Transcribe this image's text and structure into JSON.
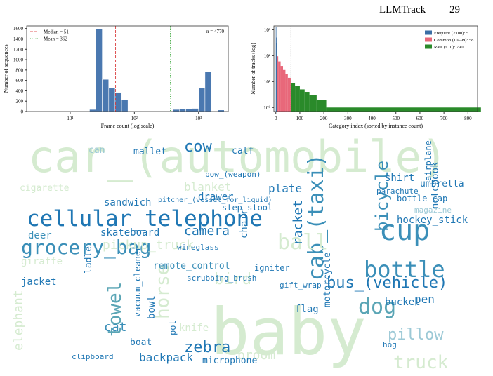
{
  "header": {
    "title": "LLMTrack",
    "page": "29"
  },
  "chart_data": [
    {
      "type": "histogram",
      "x_label": "Frame count (log scale)",
      "y_label": "Number of sequences",
      "xscale": "log",
      "color": "#4a78b0",
      "bins": [
        20,
        25.1,
        31.6,
        39.8,
        50.1,
        63.1,
        79.4,
        100,
        125.9,
        158.5,
        199.5,
        251.2,
        316.2,
        398.1,
        501.2,
        631,
        794.3,
        1000,
        1258.9,
        1584.9,
        1995.3,
        2511.9
      ],
      "values": [
        40,
        1590,
        620,
        450,
        370,
        230,
        0,
        0,
        0,
        0,
        0,
        0,
        0,
        40,
        50,
        50,
        60,
        450,
        770,
        0,
        30
      ],
      "xlim": [
        2.1,
        2900
      ],
      "xticks": [
        {
          "value": 10,
          "label": "10¹"
        },
        {
          "value": 100,
          "label": "10²"
        },
        {
          "value": 1000,
          "label": "10³"
        }
      ],
      "ylim": [
        0,
        1650
      ],
      "yticks": [
        0,
        200,
        400,
        600,
        800,
        1000,
        1200,
        1400,
        1600
      ],
      "annotation": "n = 4770",
      "lines": [
        {
          "name": "Median = 51",
          "value": 51,
          "color": "#d62728",
          "style": "dashed"
        },
        {
          "name": "Mean = 362",
          "value": 362,
          "color": "#2ca02c",
          "style": "dotted"
        }
      ],
      "legend": "upper left"
    },
    {
      "type": "step",
      "x_label": "Category index (sorted by instance count)",
      "y_label": "Number of tracks (log)",
      "yscale": "log",
      "legend": "upper right",
      "series": [
        {
          "name": "Frequent (≥100): 5",
          "color": "#3a6ea5",
          "x": [
            0,
            1,
            2,
            3,
            4
          ],
          "values": [
            1300,
            500,
            300,
            200,
            120
          ]
        },
        {
          "name": "Common (10–99): 58",
          "color": "#e8687a",
          "x": [
            5,
            10,
            20,
            30,
            40,
            50,
            62
          ],
          "values": [
            95,
            60,
            40,
            28,
            20,
            14,
            10
          ]
        },
        {
          "name": "Rare (<10): 790",
          "color": "#2a8a2a",
          "x": [
            63,
            80,
            100,
            120,
            140,
            170,
            210,
            852
          ],
          "values": [
            9,
            7,
            5,
            4,
            3,
            2,
            1,
            1
          ]
        }
      ],
      "xlim": [
        -8,
        840
      ],
      "xticks": [
        0,
        100,
        200,
        300,
        400,
        500,
        600,
        700,
        800
      ],
      "ylim": [
        0.7,
        1400
      ],
      "yticks": [
        {
          "value": 1,
          "label": "10⁰"
        },
        {
          "value": 10,
          "label": "10¹"
        },
        {
          "value": 100,
          "label": "10²"
        },
        {
          "value": 1000,
          "label": "10³"
        }
      ]
    }
  ],
  "word_cloud": {
    "words": [
      "car_(automobile)",
      "baby",
      "cellular_telephone",
      "cup",
      "bottle",
      "grocery_bag",
      "cab_(taxi)",
      "bicycle",
      "dog",
      "bus_(vehicle)",
      "towel",
      "zebra",
      "cow",
      "ball",
      "horse",
      "pillow",
      "backpack",
      "cat",
      "camera",
      "sandwich",
      "skateboard",
      "pickup_truck",
      "blanket",
      "drawer",
      "plate",
      "step_stool",
      "chair",
      "igniter",
      "remote_control",
      "bird",
      "racket",
      "hockey_stick",
      "umbrella",
      "notebook",
      "airplane",
      "bottle_cap",
      "magazine",
      "deer",
      "giraffe",
      "jacket",
      "cigarette",
      "mallet",
      "calf",
      "bucket",
      "pen",
      "flag",
      "boat",
      "broom",
      "microphone",
      "can",
      "shirt",
      "knife",
      "bowl",
      "scrubbing_brush",
      "gift_wrap",
      "wineglass",
      "parachute",
      "clipboard",
      "hog",
      "pot",
      "bow_(weapon)",
      "pitcher_(vessel_for_liquid)",
      "ladle",
      "elephant",
      "truck",
      "motorcycle",
      "vacuum_cleaner"
    ]
  }
}
